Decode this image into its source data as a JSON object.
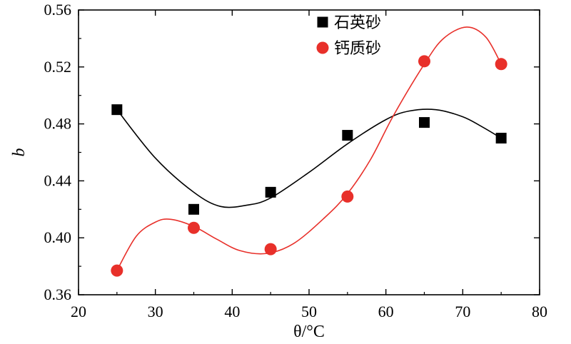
{
  "chart_data": {
    "type": "scatter",
    "xlabel": "θ/°C",
    "ylabel": "b",
    "xlim": [
      20,
      80
    ],
    "ylim": [
      0.36,
      0.56
    ],
    "xticks": [
      "20",
      "30",
      "40",
      "50",
      "60",
      "70",
      "80"
    ],
    "yticks": [
      "0.36",
      "0.40",
      "0.44",
      "0.48",
      "0.52",
      "0.56"
    ],
    "legend_position": "top-center",
    "grid": false,
    "series": [
      {
        "name": "石英砂",
        "marker": "square",
        "color": "#000000",
        "x": [
          25,
          35,
          45,
          55,
          65,
          75
        ],
        "y": [
          0.49,
          0.42,
          0.432,
          0.472,
          0.481,
          0.47
        ],
        "fit": {
          "x": [
            25,
            30,
            35,
            38.5,
            42,
            45,
            50,
            55,
            60,
            63,
            66.5,
            70,
            72.5,
            75
          ],
          "y": [
            0.49,
            0.456,
            0.432,
            0.422,
            0.423,
            0.428,
            0.446,
            0.466,
            0.483,
            0.489,
            0.49,
            0.485,
            0.478,
            0.47
          ],
          "color": "#000000"
        }
      },
      {
        "name": "钙质砂",
        "marker": "circle",
        "color": "#e8302a",
        "x": [
          25,
          35,
          45,
          55,
          65,
          75
        ],
        "y": [
          0.377,
          0.407,
          0.392,
          0.429,
          0.524,
          0.522
        ],
        "fit": {
          "x": [
            25,
            27.5,
            30,
            32,
            35,
            38,
            41,
            44.5,
            48,
            52,
            55,
            58,
            61,
            65,
            67.5,
            70.5,
            73,
            75
          ],
          "y": [
            0.377,
            0.401,
            0.411,
            0.413,
            0.408,
            0.399,
            0.391,
            0.389,
            0.396,
            0.414,
            0.431,
            0.455,
            0.486,
            0.522,
            0.54,
            0.548,
            0.541,
            0.522
          ],
          "color": "#e8302a"
        }
      }
    ]
  }
}
